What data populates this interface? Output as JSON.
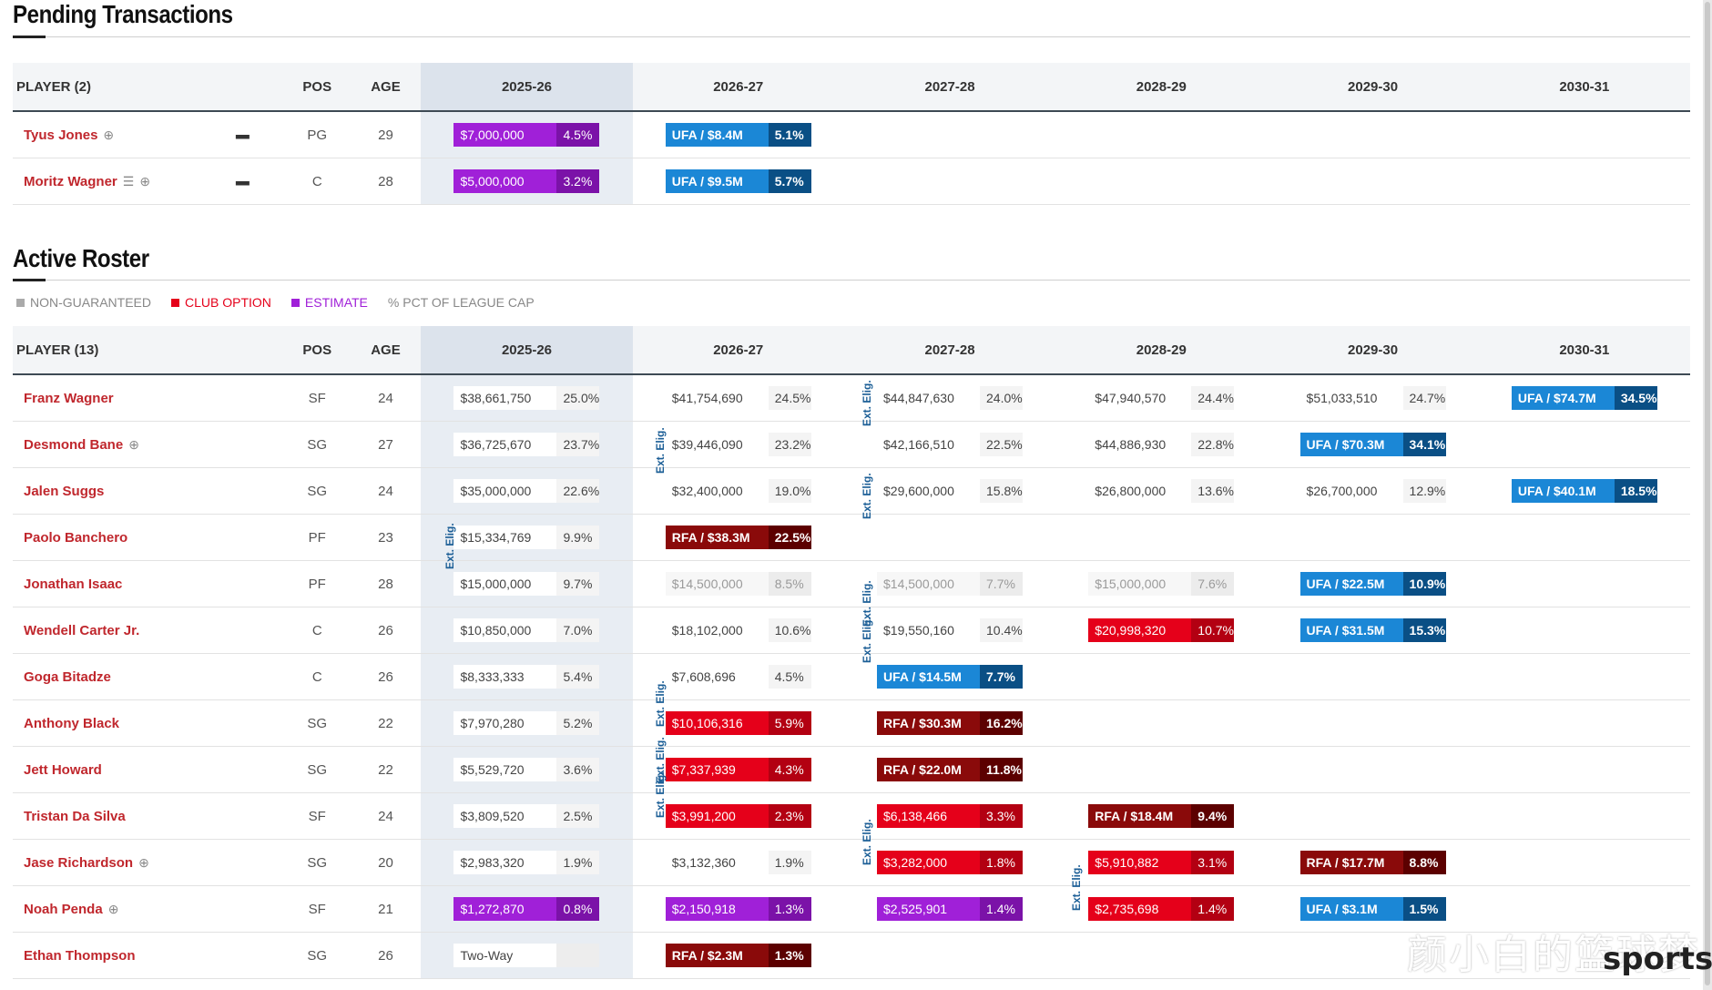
{
  "pending": {
    "title": "Pending Transactions",
    "headers": {
      "player": "PLAYER (2)",
      "pos": "POS",
      "age": "AGE",
      "years": [
        "2025-26",
        "2026-27",
        "2027-28",
        "2028-29",
        "2029-30",
        "2030-31"
      ]
    },
    "rows": [
      {
        "name": "Tyus Jones",
        "pos": "PG",
        "age": "29",
        "c1": {
          "amt": "$7,000,000",
          "pct": "4.5%",
          "kind": "est"
        },
        "c2": {
          "amt": "UFA / $8.4M",
          "pct": "5.1%",
          "kind": "ufa"
        }
      },
      {
        "name": "Moritz Wagner",
        "pos": "C",
        "age": "28",
        "c1": {
          "amt": "$5,000,000",
          "pct": "3.2%",
          "kind": "est"
        },
        "c2": {
          "amt": "UFA / $9.5M",
          "pct": "5.7%",
          "kind": "ufa"
        }
      }
    ]
  },
  "roster": {
    "title": "Active Roster",
    "legend": {
      "non_guaranteed": "NON-GUARANTEED",
      "club_option": "CLUB OPTION",
      "estimate": "ESTIMATE",
      "pct": "% PCT OF LEAGUE CAP"
    },
    "headers": {
      "player": "PLAYER (13)",
      "pos": "POS",
      "age": "AGE",
      "years": [
        "2025-26",
        "2026-27",
        "2027-28",
        "2028-29",
        "2029-30",
        "2030-31"
      ]
    },
    "ext_label": "Ext. Elig.",
    "rows": [
      {
        "name": "Franz Wagner",
        "pos": "SF",
        "age": "24",
        "cells": [
          [
            "$38,661,750",
            "25.0%",
            "g"
          ],
          [
            "$41,754,690",
            "24.5%",
            "g"
          ],
          [
            "$44,847,630",
            "24.0%",
            "g"
          ],
          [
            "$47,940,570",
            "24.4%",
            "g"
          ],
          [
            "$51,033,510",
            "24.7%",
            "g"
          ],
          [
            "UFA / $74.7M",
            "34.5%",
            "ufa"
          ]
        ]
      },
      {
        "name": "Desmond Bane",
        "pos": "SG",
        "age": "27",
        "cells": [
          [
            "$36,725,670",
            "23.7%",
            "g"
          ],
          [
            "$39,446,090",
            "23.2%",
            "g"
          ],
          [
            "$42,166,510",
            "22.5%",
            "g"
          ],
          [
            "$44,886,930",
            "22.8%",
            "g"
          ],
          [
            "UFA / $70.3M",
            "34.1%",
            "ufa"
          ],
          null
        ]
      },
      {
        "name": "Jalen Suggs",
        "pos": "SG",
        "age": "24",
        "cells": [
          [
            "$35,000,000",
            "22.6%",
            "g"
          ],
          [
            "$32,400,000",
            "19.0%",
            "g"
          ],
          [
            "$29,600,000",
            "15.8%",
            "g"
          ],
          [
            "$26,800,000",
            "13.6%",
            "g"
          ],
          [
            "$26,700,000",
            "12.9%",
            "g"
          ],
          [
            "UFA / $40.1M",
            "18.5%",
            "ufa"
          ]
        ]
      },
      {
        "name": "Paolo Banchero",
        "pos": "PF",
        "age": "23",
        "cells": [
          [
            "$15,334,769",
            "9.9%",
            "g"
          ],
          [
            "RFA / $38.3M",
            "22.5%",
            "rfa"
          ],
          null,
          null,
          null,
          null
        ]
      },
      {
        "name": "Jonathan Isaac",
        "pos": "PF",
        "age": "28",
        "cells": [
          [
            "$15,000,000",
            "9.7%",
            "g"
          ],
          [
            "$14,500,000",
            "8.5%",
            "ng"
          ],
          [
            "$14,500,000",
            "7.7%",
            "ng"
          ],
          [
            "$15,000,000",
            "7.6%",
            "ng"
          ],
          [
            "UFA / $22.5M",
            "10.9%",
            "ufa"
          ],
          null
        ]
      },
      {
        "name": "Wendell Carter Jr.",
        "pos": "C",
        "age": "26",
        "cells": [
          [
            "$10,850,000",
            "7.0%",
            "g"
          ],
          [
            "$18,102,000",
            "10.6%",
            "g"
          ],
          [
            "$19,550,160",
            "10.4%",
            "g"
          ],
          [
            "$20,998,320",
            "10.7%",
            "opt"
          ],
          [
            "UFA / $31.5M",
            "15.3%",
            "ufa"
          ],
          null
        ]
      },
      {
        "name": "Goga Bitadze",
        "pos": "C",
        "age": "26",
        "cells": [
          [
            "$8,333,333",
            "5.4%",
            "g"
          ],
          [
            "$7,608,696",
            "4.5%",
            "g"
          ],
          [
            "UFA / $14.5M",
            "7.7%",
            "ufa"
          ],
          null,
          null,
          null
        ]
      },
      {
        "name": "Anthony Black",
        "pos": "SG",
        "age": "22",
        "cells": [
          [
            "$7,970,280",
            "5.2%",
            "g"
          ],
          [
            "$10,106,316",
            "5.9%",
            "opt"
          ],
          [
            "RFA / $30.3M",
            "16.2%",
            "rfa"
          ],
          null,
          null,
          null
        ]
      },
      {
        "name": "Jett Howard",
        "pos": "SG",
        "age": "22",
        "cells": [
          [
            "$5,529,720",
            "3.6%",
            "g"
          ],
          [
            "$7,337,939",
            "4.3%",
            "opt"
          ],
          [
            "RFA / $22.0M",
            "11.8%",
            "rfa"
          ],
          null,
          null,
          null
        ]
      },
      {
        "name": "Tristan Da Silva",
        "pos": "SF",
        "age": "24",
        "cells": [
          [
            "$3,809,520",
            "2.5%",
            "g"
          ],
          [
            "$3,991,200",
            "2.3%",
            "opt"
          ],
          [
            "$6,138,466",
            "3.3%",
            "opt"
          ],
          [
            "RFA / $18.4M",
            "9.4%",
            "rfa"
          ],
          null,
          null
        ]
      },
      {
        "name": "Jase Richardson",
        "pos": "SG",
        "age": "20",
        "cells": [
          [
            "$2,983,320",
            "1.9%",
            "g"
          ],
          [
            "$3,132,360",
            "1.9%",
            "g"
          ],
          [
            "$3,282,000",
            "1.8%",
            "opt"
          ],
          [
            "$5,910,882",
            "3.1%",
            "opt"
          ],
          [
            "RFA / $17.7M",
            "8.8%",
            "rfa"
          ],
          null
        ]
      },
      {
        "name": "Noah Penda",
        "pos": "SF",
        "age": "21",
        "cells": [
          [
            "$1,272,870",
            "0.8%",
            "est"
          ],
          [
            "$2,150,918",
            "1.3%",
            "est"
          ],
          [
            "$2,525,901",
            "1.4%",
            "est"
          ],
          [
            "$2,735,698",
            "1.4%",
            "opt"
          ],
          [
            "UFA / $3.1M",
            "1.5%",
            "ufa"
          ],
          null
        ]
      },
      {
        "name": "Ethan Thompson",
        "pos": "SG",
        "age": "26",
        "cells": [
          [
            "Two-Way",
            "",
            "tw"
          ],
          [
            "RFA / $2.3M",
            "1.3%",
            "rfa"
          ],
          null,
          null,
          null,
          null
        ]
      }
    ]
  },
  "colors": {
    "accent_red": "#c0272d",
    "estimate_purple": "#a020d8",
    "club_option_red": "#e5001a",
    "ufa_blue": "#1b87d6",
    "rfa_dark_red": "#8a0a0a",
    "header_bg": "#f3f5f7"
  },
  "watermark": {
    "cn": "颜小白的篮球梦",
    "en": "sports"
  }
}
